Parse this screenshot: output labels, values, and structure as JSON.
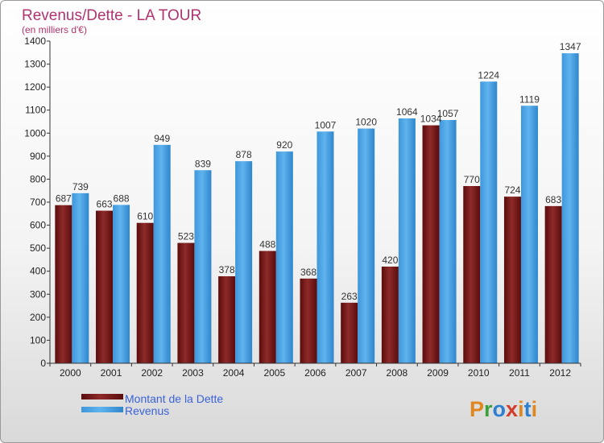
{
  "title": "Revenus/Dette - LA TOUR",
  "subtitle": "(en milliers d'€)",
  "logo": "Proxiti",
  "colors": {
    "debt": "#7a1a1a",
    "revenue": "#4aa3e4",
    "title": "#b0336f",
    "legend_text": "#3b62d8",
    "logo": [
      "#e0861e",
      "#3aa03a",
      "#2f7fd1",
      "#d33b2a",
      "#e0861e",
      "#2f7fd1",
      "#e0861e"
    ]
  },
  "chart_data": {
    "type": "bar",
    "title": "Revenus/Dette - LA TOUR",
    "subtitle": "(en milliers d'€)",
    "xlabel": "",
    "ylabel": "",
    "ylim": [
      0,
      1400
    ],
    "yticks": [
      0,
      100,
      200,
      300,
      400,
      500,
      600,
      700,
      800,
      900,
      1000,
      1100,
      1200,
      1300,
      1400
    ],
    "grid": false,
    "legend_position": "bottom-left",
    "categories": [
      "2000",
      "2001",
      "2002",
      "2003",
      "2004",
      "2005",
      "2006",
      "2007",
      "2008",
      "2009",
      "2010",
      "2011",
      "2012"
    ],
    "series": [
      {
        "name": "Montant de la Dette",
        "values": [
          687,
          663,
          610,
          523,
          378,
          488,
          368,
          263,
          420,
          1034,
          770,
          724,
          683
        ]
      },
      {
        "name": "Revenus",
        "values": [
          739,
          688,
          949,
          839,
          878,
          920,
          1007,
          1020,
          1064,
          1057,
          1224,
          1119,
          1347
        ]
      }
    ]
  }
}
